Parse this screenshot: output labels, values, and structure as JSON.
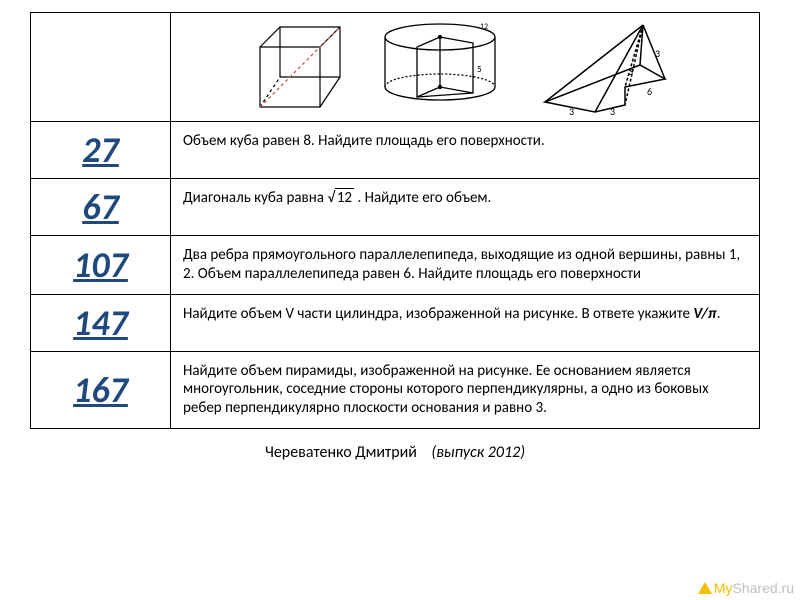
{
  "rows": [
    {
      "num": "27",
      "desc_html": "Объем куба равен 8. Найдите площадь его поверхности."
    },
    {
      "num": "67",
      "desc_html": "Диагональ куба равна <span style='white-space:nowrap'>√<span class='sqrt'>12</span></span> . Найдите его объем."
    },
    {
      "num": "107",
      "desc_html": "Два ребра прямоугольного параллелепипеда, выходящие из одной вершины, равны 1, 2. Объем параллелепипеда равен 6. Найдите площадь его поверхности"
    },
    {
      "num": "147",
      "desc_html": "Найдите объем V части цилиндра, изображенной на рисунке. В ответе укажите <span class='ital'><b>V/π</b></span>."
    },
    {
      "num": "167",
      "desc_html": "Найдите объем пирамиды, изображенной на рисунке. Ее основанием является многоугольник, соседние стороны которого перпендикулярны, а одно из боковых ребер перпендикулярно плоскости основания и равно 3."
    }
  ],
  "credit": {
    "name": "Череватенко Дмитрий",
    "year": "(выпуск 2012)"
  },
  "watermark": {
    "my": "My",
    "shared": "Shared.ru"
  },
  "colors": {
    "link": "#1f497d",
    "border": "#000000",
    "text": "#000000",
    "wm_tri": "#f3c000",
    "wm_gray": "#c0c0c0"
  }
}
